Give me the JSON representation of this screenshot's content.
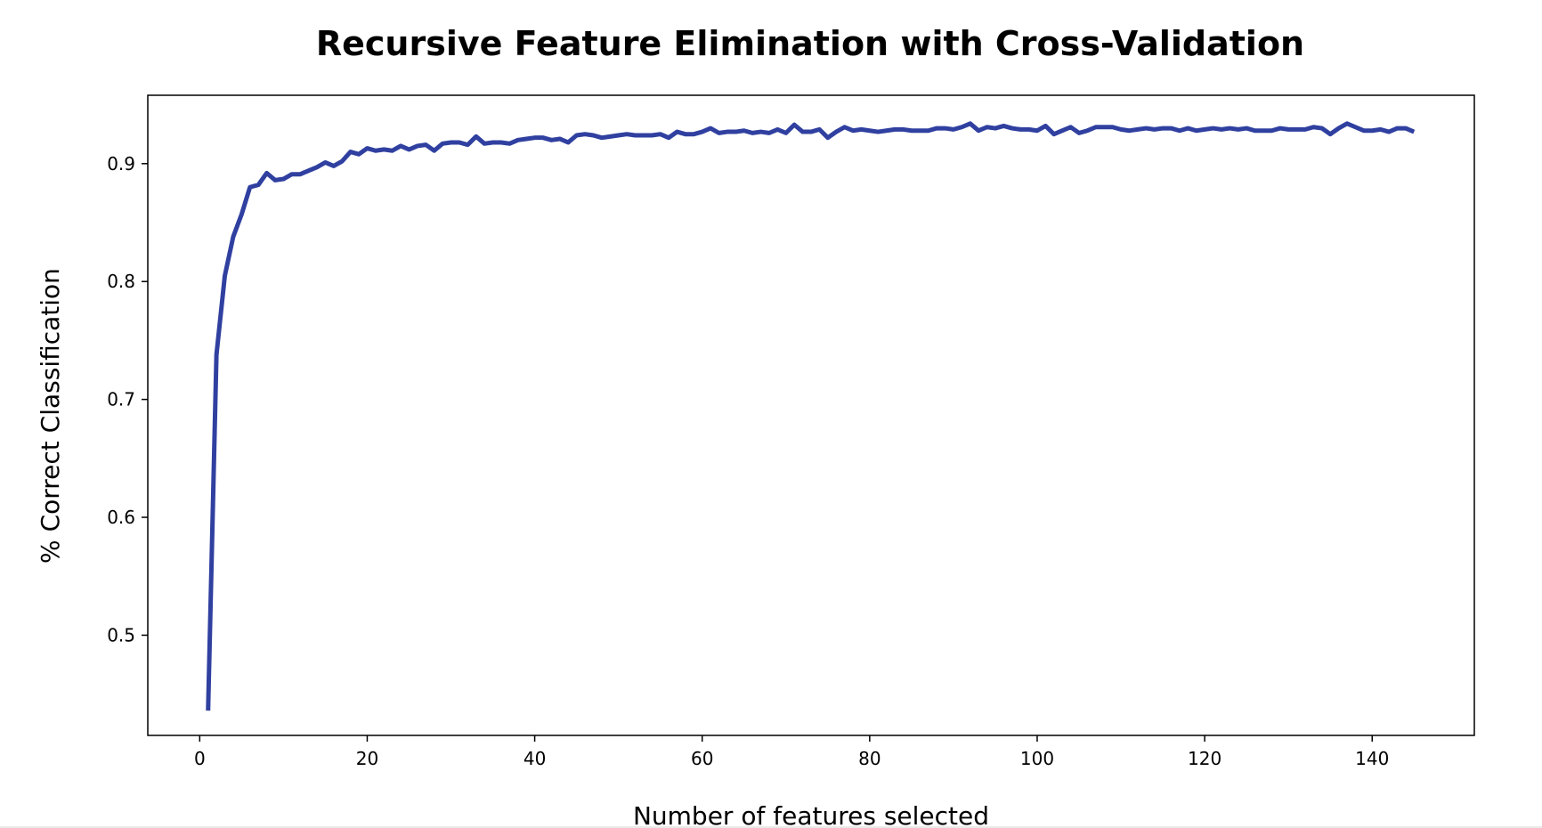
{
  "chart_data": {
    "type": "line",
    "title": "Recursive Feature Elimination with Cross-Validation",
    "xlabel": "Number of features selected",
    "ylabel": "% Correct Classification",
    "xlim": [
      -6.2,
      152.2
    ],
    "ylim": [
      0.415,
      0.958
    ],
    "x_ticks": [
      0,
      20,
      40,
      60,
      80,
      100,
      120,
      140
    ],
    "y_ticks": [
      0.5,
      0.6,
      0.7,
      0.8,
      0.9
    ],
    "y_tick_labels": [
      "0.5",
      "0.6",
      "0.7",
      "0.8",
      "0.9"
    ],
    "grid": false,
    "legend": "none",
    "series": [
      {
        "color": "#3040a0",
        "x": [
          1,
          2,
          3,
          4,
          5,
          6,
          7,
          8,
          9,
          10,
          11,
          12,
          13,
          14,
          15,
          16,
          17,
          18,
          19,
          20,
          21,
          22,
          23,
          24,
          25,
          26,
          27,
          28,
          29,
          30,
          31,
          32,
          33,
          34,
          35,
          36,
          37,
          38,
          39,
          40,
          41,
          42,
          43,
          44,
          45,
          46,
          47,
          48,
          49,
          50,
          51,
          52,
          53,
          54,
          55,
          56,
          57,
          58,
          59,
          60,
          61,
          62,
          63,
          64,
          65,
          66,
          67,
          68,
          69,
          70,
          71,
          72,
          73,
          74,
          75,
          76,
          77,
          78,
          79,
          80,
          81,
          82,
          83,
          84,
          85,
          86,
          87,
          88,
          89,
          90,
          91,
          92,
          93,
          94,
          95,
          96,
          97,
          98,
          99,
          100,
          101,
          102,
          103,
          104,
          105,
          106,
          107,
          108,
          109,
          110,
          111,
          112,
          113,
          114,
          115,
          116,
          117,
          118,
          119,
          120,
          121,
          122,
          123,
          124,
          125,
          126,
          127,
          128,
          129,
          130,
          131,
          132,
          133,
          134,
          135,
          136,
          137,
          138,
          139,
          140,
          141,
          142,
          143,
          144,
          145
        ],
        "y": [
          0.436,
          0.738,
          0.805,
          0.838,
          0.857,
          0.88,
          0.882,
          0.892,
          0.886,
          0.887,
          0.891,
          0.891,
          0.894,
          0.897,
          0.901,
          0.898,
          0.902,
          0.91,
          0.908,
          0.913,
          0.911,
          0.912,
          0.911,
          0.915,
          0.912,
          0.915,
          0.916,
          0.911,
          0.917,
          0.918,
          0.918,
          0.916,
          0.923,
          0.917,
          0.918,
          0.918,
          0.917,
          0.92,
          0.921,
          0.922,
          0.922,
          0.92,
          0.921,
          0.918,
          0.924,
          0.925,
          0.924,
          0.922,
          0.923,
          0.924,
          0.925,
          0.924,
          0.924,
          0.924,
          0.925,
          0.922,
          0.927,
          0.925,
          0.925,
          0.927,
          0.93,
          0.926,
          0.927,
          0.927,
          0.928,
          0.926,
          0.927,
          0.926,
          0.929,
          0.926,
          0.933,
          0.927,
          0.927,
          0.929,
          0.922,
          0.927,
          0.931,
          0.928,
          0.929,
          0.928,
          0.927,
          0.928,
          0.929,
          0.929,
          0.928,
          0.928,
          0.928,
          0.93,
          0.93,
          0.929,
          0.931,
          0.934,
          0.928,
          0.931,
          0.93,
          0.932,
          0.93,
          0.929,
          0.929,
          0.928,
          0.932,
          0.925,
          0.928,
          0.931,
          0.926,
          0.928,
          0.931,
          0.931,
          0.931,
          0.929,
          0.928,
          0.929,
          0.93,
          0.929,
          0.93,
          0.93,
          0.928,
          0.93,
          0.928,
          0.929,
          0.93,
          0.929,
          0.93,
          0.929,
          0.93,
          0.928,
          0.928,
          0.928,
          0.93,
          0.929,
          0.929,
          0.929,
          0.931,
          0.93,
          0.925,
          0.93,
          0.934,
          0.931,
          0.928,
          0.928,
          0.929,
          0.927,
          0.93,
          0.93,
          0.927
        ]
      }
    ]
  }
}
